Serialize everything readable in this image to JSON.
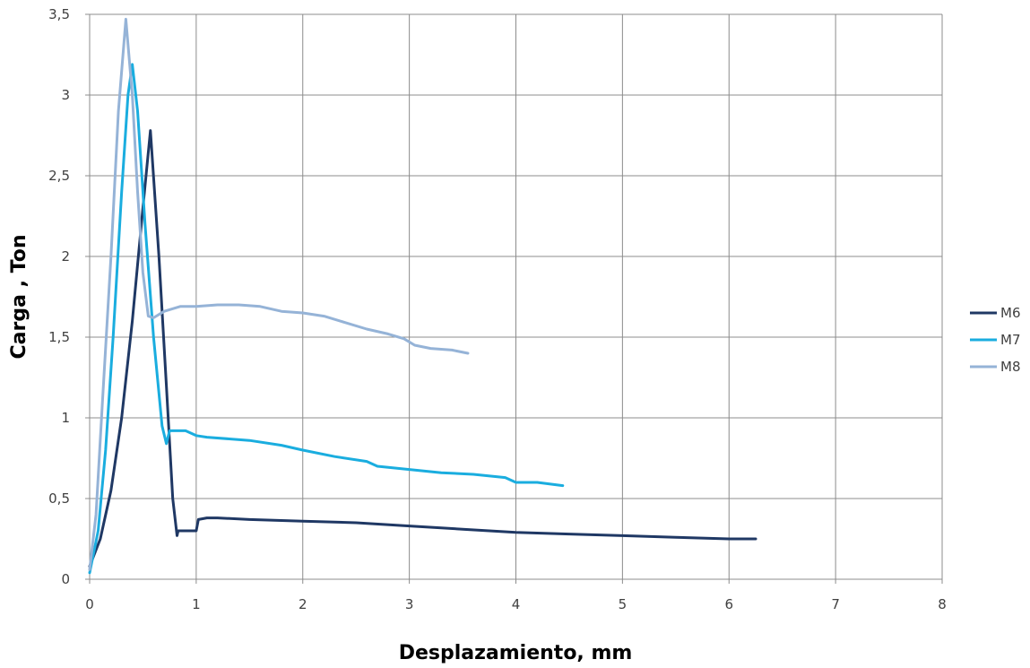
{
  "chart_data": {
    "type": "line",
    "title": "",
    "xlabel": "Desplazamiento, mm",
    "ylabel": "Carga , Ton",
    "xlim": [
      0,
      8
    ],
    "ylim": [
      0,
      3.5
    ],
    "xticks": [
      "0",
      "1",
      "2",
      "3",
      "4",
      "5",
      "6",
      "7",
      "8"
    ],
    "yticks": [
      "0",
      "0,5",
      "1",
      "1,5",
      "2",
      "2,5",
      "3",
      "3,5"
    ],
    "grid": true,
    "legend_position": "right",
    "series": [
      {
        "name": "M6",
        "color": "#1F3864",
        "points": [
          [
            0.0,
            0.08
          ],
          [
            0.1,
            0.25
          ],
          [
            0.2,
            0.55
          ],
          [
            0.3,
            1.0
          ],
          [
            0.4,
            1.6
          ],
          [
            0.5,
            2.3
          ],
          [
            0.57,
            2.78
          ],
          [
            0.65,
            2.0
          ],
          [
            0.72,
            1.2
          ],
          [
            0.78,
            0.5
          ],
          [
            0.82,
            0.27
          ],
          [
            0.83,
            0.3
          ],
          [
            0.9,
            0.3
          ],
          [
            1.0,
            0.3
          ],
          [
            1.02,
            0.37
          ],
          [
            1.1,
            0.38
          ],
          [
            1.2,
            0.38
          ],
          [
            1.5,
            0.37
          ],
          [
            2.0,
            0.36
          ],
          [
            2.5,
            0.35
          ],
          [
            3.0,
            0.33
          ],
          [
            3.5,
            0.31
          ],
          [
            4.0,
            0.29
          ],
          [
            4.5,
            0.28
          ],
          [
            5.0,
            0.27
          ],
          [
            5.5,
            0.26
          ],
          [
            6.0,
            0.25
          ],
          [
            6.25,
            0.25
          ]
        ]
      },
      {
        "name": "M7",
        "color": "#1AADDF",
        "points": [
          [
            0.0,
            0.04
          ],
          [
            0.08,
            0.3
          ],
          [
            0.15,
            0.8
          ],
          [
            0.22,
            1.5
          ],
          [
            0.3,
            2.4
          ],
          [
            0.36,
            3.0
          ],
          [
            0.4,
            3.19
          ],
          [
            0.45,
            2.9
          ],
          [
            0.52,
            2.2
          ],
          [
            0.6,
            1.5
          ],
          [
            0.68,
            0.95
          ],
          [
            0.72,
            0.84
          ],
          [
            0.75,
            0.92
          ],
          [
            0.9,
            0.92
          ],
          [
            1.0,
            0.89
          ],
          [
            1.1,
            0.88
          ],
          [
            1.5,
            0.86
          ],
          [
            1.8,
            0.83
          ],
          [
            2.0,
            0.8
          ],
          [
            2.3,
            0.76
          ],
          [
            2.6,
            0.73
          ],
          [
            2.7,
            0.7
          ],
          [
            3.0,
            0.68
          ],
          [
            3.3,
            0.66
          ],
          [
            3.6,
            0.65
          ],
          [
            3.9,
            0.63
          ],
          [
            4.0,
            0.6
          ],
          [
            4.2,
            0.6
          ],
          [
            4.44,
            0.58
          ]
        ]
      },
      {
        "name": "M8",
        "color": "#95B3D7",
        "points": [
          [
            0.0,
            0.06
          ],
          [
            0.06,
            0.4
          ],
          [
            0.12,
            1.1
          ],
          [
            0.2,
            2.0
          ],
          [
            0.27,
            2.9
          ],
          [
            0.34,
            3.47
          ],
          [
            0.4,
            3.0
          ],
          [
            0.45,
            2.4
          ],
          [
            0.5,
            1.9
          ],
          [
            0.55,
            1.63
          ],
          [
            0.6,
            1.62
          ],
          [
            0.7,
            1.66
          ],
          [
            0.85,
            1.69
          ],
          [
            1.0,
            1.69
          ],
          [
            1.2,
            1.7
          ],
          [
            1.4,
            1.7
          ],
          [
            1.6,
            1.69
          ],
          [
            1.8,
            1.66
          ],
          [
            2.0,
            1.65
          ],
          [
            2.2,
            1.63
          ],
          [
            2.4,
            1.59
          ],
          [
            2.6,
            1.55
          ],
          [
            2.8,
            1.52
          ],
          [
            2.95,
            1.49
          ],
          [
            3.05,
            1.45
          ],
          [
            3.2,
            1.43
          ],
          [
            3.4,
            1.42
          ],
          [
            3.55,
            1.4
          ]
        ]
      }
    ]
  }
}
